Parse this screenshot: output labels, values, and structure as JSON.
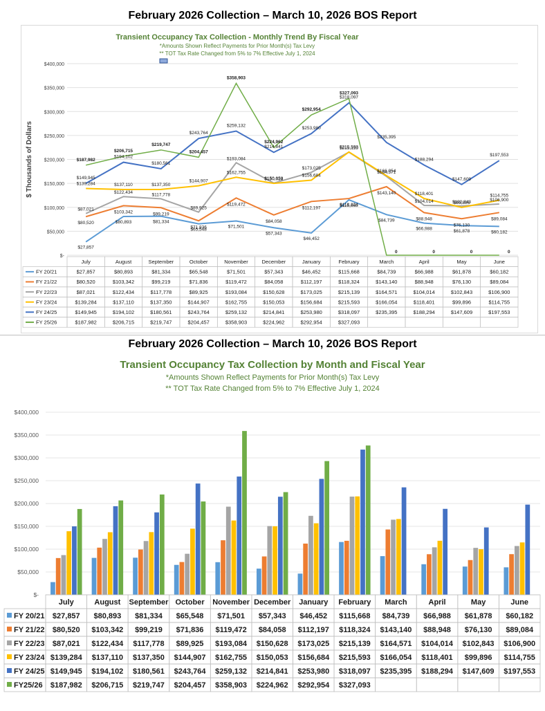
{
  "headings": {
    "top": "February 2026 Collection – March 10, 2026 BOS Report",
    "bottom": "February 2026 Collection – March 10, 2026 BOS Report"
  },
  "colors": {
    "fy2021": "#5b9bd5",
    "fy2122": "#ed7d31",
    "fy2223": "#a5a5a5",
    "fy2324": "#ffc000",
    "fy2425": "#4472c4",
    "fy2526": "#70ad47",
    "title_green": "#548235"
  },
  "chart_data": [
    {
      "type": "line",
      "title": "Transient Occupancy Tax Collection - Monthly Trend By Fiscal Year",
      "subtitle1": "*Amounts Shown Reflect Payments for Prior Month(s) Tax Levy",
      "subtitle2": "** TOT Tax Rate Changed from 5% to 7% Effective July 1, 2024",
      "ylabel": "$ Thousands of Dollars",
      "ylim": [
        0,
        400000
      ],
      "yticks": [
        "$-",
        "$50,000",
        "$100,000",
        "$150,000",
        "$200,000",
        "$250,000",
        "$300,000",
        "$350,000",
        "$400,000"
      ],
      "categories": [
        "July",
        "August",
        "September",
        "October",
        "November",
        "December",
        "January",
        "February",
        "March",
        "April",
        "May",
        "June"
      ],
      "series": [
        {
          "name": "FY 20/21",
          "values": [
            27857,
            80893,
            81334,
            65548,
            71501,
            57343,
            46452,
            115668,
            84739,
            66988,
            61878,
            60182
          ],
          "labels": [
            "$27,857",
            "$80,893",
            "$81,334",
            "$65,548",
            "$71,501",
            "$57,343",
            "$46,452",
            "$115,668",
            "$84,739",
            "$66,988",
            "$61,878",
            "$60,182"
          ]
        },
        {
          "name": "FY 21/22",
          "values": [
            80520,
            103342,
            99219,
            71836,
            119472,
            84058,
            112197,
            118324,
            143140,
            88948,
            76130,
            89084
          ],
          "labels": [
            "$80,520",
            "$103,342",
            "$99,219",
            "$71,836",
            "$119,472",
            "$84,058",
            "$112,197",
            "$118,324",
            "$143,140",
            "$88,948",
            "$76,130",
            "$89,084"
          ]
        },
        {
          "name": "FY 22/23",
          "values": [
            87021,
            122434,
            117778,
            89925,
            193084,
            150628,
            173025,
            215139,
            164571,
            104014,
            102843,
            106900
          ],
          "labels": [
            "$87,021",
            "$122,434",
            "$117,778",
            "$89,925",
            "$193,084",
            "$150,628",
            "$173,025",
            "$215,139",
            "$164,571",
            "$104,014",
            "$102,843",
            "$106,900"
          ]
        },
        {
          "name": "FY 23/24",
          "values": [
            139284,
            137110,
            137350,
            144907,
            162755,
            150053,
            156684,
            215593,
            166054,
            118401,
            99896,
            114755
          ],
          "labels": [
            "$139,284",
            "$137,110",
            "$137,350",
            "$144,907",
            "$162,755",
            "$150,053",
            "$156,684",
            "$215,593",
            "$166,054",
            "$118,401",
            "$99,896",
            "$114,755"
          ]
        },
        {
          "name": "FY 24/25",
          "values": [
            149945,
            194102,
            180561,
            243764,
            259132,
            214841,
            253980,
            318097,
            235395,
            188294,
            147609,
            197553
          ],
          "labels": [
            "$149,945",
            "$194,102",
            "$180,561",
            "$243,764",
            "$259,132",
            "$214,841",
            "$253,980",
            "$318,097",
            "$235,395",
            "$188,294",
            "$147,609",
            "$197,553"
          ]
        },
        {
          "name": "FY 25/26",
          "values": [
            187982,
            206715,
            219747,
            204457,
            358903,
            224962,
            292954,
            327093,
            0,
            0,
            0,
            0
          ],
          "labels": [
            "$187,982",
            "$206,715",
            "$219,747",
            "$204,457",
            "$358,903",
            "$224,962",
            "$292,954",
            "$327,093",
            "0",
            "0",
            "0",
            "0"
          ],
          "table_labels": [
            "$187,982",
            "$206,715",
            "$219,747",
            "$204,457",
            "$358,903",
            "$224,962",
            "$292,954",
            "$327,093",
            "",
            "",
            "",
            ""
          ]
        }
      ]
    },
    {
      "type": "bar",
      "title": "Transient Occupancy Tax Collection by Month and Fiscal Year",
      "subtitle1": "*Amounts Shown Reflect Payments for Prior Month(s) Tax Levy",
      "subtitle2": "** TOT Tax Rate Changed from 5% to 7% Effective July 1, 2024",
      "ylim": [
        0,
        400000
      ],
      "yticks": [
        "$-",
        "$50,000",
        "$100,000",
        "$150,000",
        "$200,000",
        "$250,000",
        "$300,000",
        "$350,000",
        "$400,000"
      ],
      "categories": [
        "July",
        "August",
        "September",
        "October",
        "November",
        "December",
        "January",
        "February",
        "March",
        "April",
        "May",
        "June"
      ],
      "series": [
        {
          "name": "FY 20/21",
          "values": [
            27857,
            80893,
            81334,
            65548,
            71501,
            57343,
            46452,
            115668,
            84739,
            66988,
            61878,
            60182
          ],
          "labels": [
            "$27,857",
            "$80,893",
            "$81,334",
            "$65,548",
            "$71,501",
            "$57,343",
            "$46,452",
            "$115,668",
            "$84,739",
            "$66,988",
            "$61,878",
            "$60,182"
          ]
        },
        {
          "name": "FY 21/22",
          "values": [
            80520,
            103342,
            99219,
            71836,
            119472,
            84058,
            112197,
            118324,
            143140,
            88948,
            76130,
            89084
          ],
          "labels": [
            "$80,520",
            "$103,342",
            "$99,219",
            "$71,836",
            "$119,472",
            "$84,058",
            "$112,197",
            "$118,324",
            "$143,140",
            "$88,948",
            "$76,130",
            "$89,084"
          ]
        },
        {
          "name": "FY 22/23",
          "values": [
            87021,
            122434,
            117778,
            89925,
            193084,
            150628,
            173025,
            215139,
            164571,
            104014,
            102843,
            106900
          ],
          "labels": [
            "$87,021",
            "$122,434",
            "$117,778",
            "$89,925",
            "$193,084",
            "$150,628",
            "$173,025",
            "$215,139",
            "$164,571",
            "$104,014",
            "$102,843",
            "$106,900"
          ]
        },
        {
          "name": "FY 23/24",
          "values": [
            139284,
            137110,
            137350,
            144907,
            162755,
            150053,
            156684,
            215593,
            166054,
            118401,
            99896,
            114755
          ],
          "labels": [
            "$139,284",
            "$137,110",
            "$137,350",
            "$144,907",
            "$162,755",
            "$150,053",
            "$156,684",
            "$215,593",
            "$166,054",
            "$118,401",
            "$99,896",
            "$114,755"
          ]
        },
        {
          "name": "FY 24/25",
          "values": [
            149945,
            194102,
            180561,
            243764,
            259132,
            214841,
            253980,
            318097,
            235395,
            188294,
            147609,
            197553
          ],
          "labels": [
            "$149,945",
            "$194,102",
            "$180,561",
            "$243,764",
            "$259,132",
            "$214,841",
            "$253,980",
            "$318,097",
            "$235,395",
            "$188,294",
            "$147,609",
            "$197,553"
          ]
        },
        {
          "name": "FY25/26",
          "values": [
            187982,
            206715,
            219747,
            204457,
            358903,
            224962,
            292954,
            327093,
            null,
            null,
            null,
            null
          ],
          "labels": [
            "$187,982",
            "$206,715",
            "$219,747",
            "$204,457",
            "$358,903",
            "$224,962",
            "$292,954",
            "$327,093",
            "",
            "",
            "",
            ""
          ]
        }
      ]
    }
  ]
}
